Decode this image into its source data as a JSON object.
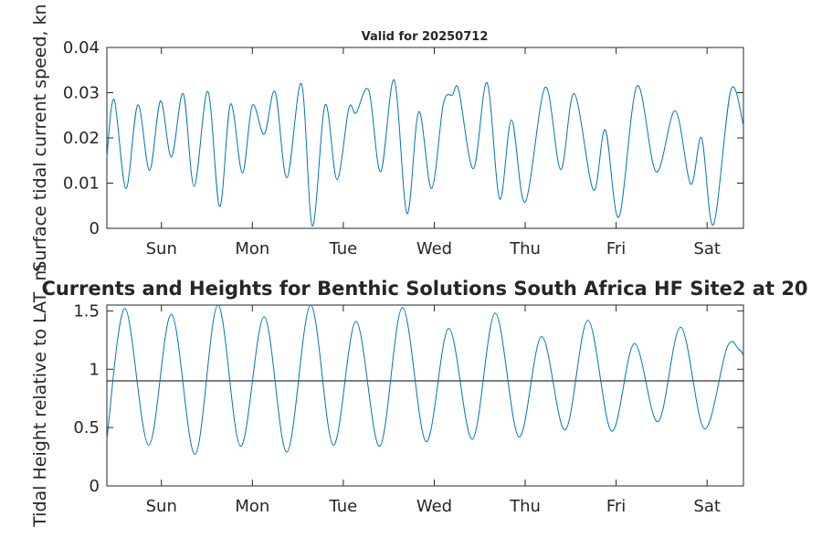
{
  "figure": {
    "title": "Currents and Heights for Benthic Solutions South Africa HF Site2 at 20",
    "valid_label": "Valid for 20250712"
  },
  "chart_data": [
    {
      "type": "line",
      "name": "speed",
      "ylabel": "Surface tidal current speed, kn",
      "xlabel": "",
      "x_unit": "days",
      "xlim": [
        0,
        7
      ],
      "ylim": [
        0,
        0.04
      ],
      "yticks": [
        0,
        0.01,
        0.02,
        0.03,
        0.04
      ],
      "ytick_labels": [
        "0",
        "0.01",
        "0.02",
        "0.03",
        "0.04"
      ],
      "xtick_positions": [
        0.6,
        1.6,
        2.6,
        3.6,
        4.6,
        5.6,
        6.6
      ],
      "xtick_labels": [
        "Sun",
        "Mon",
        "Tue",
        "Wed",
        "Thu",
        "Fri",
        "Sat"
      ],
      "grid": false,
      "line_color": "#0072BD",
      "series": [
        {
          "x": [
            0,
            0.08,
            0.21,
            0.34,
            0.47,
            0.59,
            0.71,
            0.84,
            0.96,
            1.11,
            1.24,
            1.36,
            1.49,
            1.6,
            1.73,
            1.85,
            1.98,
            2.14,
            2.26,
            2.4,
            2.53,
            2.66,
            2.74,
            2.88,
            3.01,
            3.16,
            3.3,
            3.43,
            3.57,
            3.7,
            3.8,
            3.87,
            4.03,
            4.18,
            4.32,
            4.45,
            4.6,
            4.82,
            4.99,
            5.14,
            5.35,
            5.48,
            5.63,
            5.83,
            6.04,
            6.25,
            6.42,
            6.54,
            6.67,
            6.86,
            7
          ],
          "y": [
            0.0158,
            0.0285,
            0.0088,
            0.0273,
            0.0128,
            0.0282,
            0.0158,
            0.0298,
            0.0093,
            0.0303,
            0.0048,
            0.0275,
            0.0122,
            0.0272,
            0.0208,
            0.0302,
            0.0112,
            0.032,
            0.0005,
            0.0273,
            0.0108,
            0.0265,
            0.0255,
            0.0305,
            0.0125,
            0.0328,
            0.0033,
            0.0258,
            0.0088,
            0.0275,
            0.0295,
            0.0305,
            0.0132,
            0.0322,
            0.0065,
            0.024,
            0.0058,
            0.0312,
            0.013,
            0.0298,
            0.0085,
            0.0218,
            0.0025,
            0.0315,
            0.0125,
            0.026,
            0.0098,
            0.02,
            0.0008,
            0.0305,
            0.0228
          ]
        }
      ]
    },
    {
      "type": "line",
      "name": "height",
      "ylabel": "Tidal Height relative to LAT, m",
      "xlabel": "",
      "x_unit": "days",
      "xlim": [
        0,
        7
      ],
      "ylim": [
        0,
        1.55
      ],
      "yticks": [
        0,
        0.5,
        1,
        1.5
      ],
      "ytick_labels": [
        "0",
        "0.5",
        "1",
        "1.5"
      ],
      "xtick_positions": [
        0.6,
        1.6,
        2.6,
        3.6,
        4.6,
        5.6,
        6.6
      ],
      "xtick_labels": [
        "Sun",
        "Mon",
        "Tue",
        "Wed",
        "Thu",
        "Fri",
        "Sat"
      ],
      "grid": false,
      "line_color": "#0072BD",
      "reference_line": {
        "y": 0.9,
        "color": "#000000"
      },
      "series": [
        {
          "x": [
            0,
            0.2,
            0.46,
            0.71,
            0.97,
            1.22,
            1.47,
            1.73,
            1.98,
            2.24,
            2.49,
            2.74,
            3,
            3.25,
            3.51,
            3.76,
            4.02,
            4.27,
            4.53,
            4.78,
            5.04,
            5.29,
            5.55,
            5.8,
            6.06,
            6.31,
            6.57,
            6.82,
            6.95,
            7
          ],
          "y": [
            0.4,
            1.52,
            0.35,
            1.47,
            0.27,
            1.55,
            0.34,
            1.45,
            0.29,
            1.55,
            0.35,
            1.41,
            0.34,
            1.53,
            0.38,
            1.35,
            0.4,
            1.48,
            0.42,
            1.28,
            0.48,
            1.42,
            0.47,
            1.22,
            0.55,
            1.36,
            0.49,
            1.19,
            1.17,
            1.12
          ]
        }
      ]
    }
  ]
}
